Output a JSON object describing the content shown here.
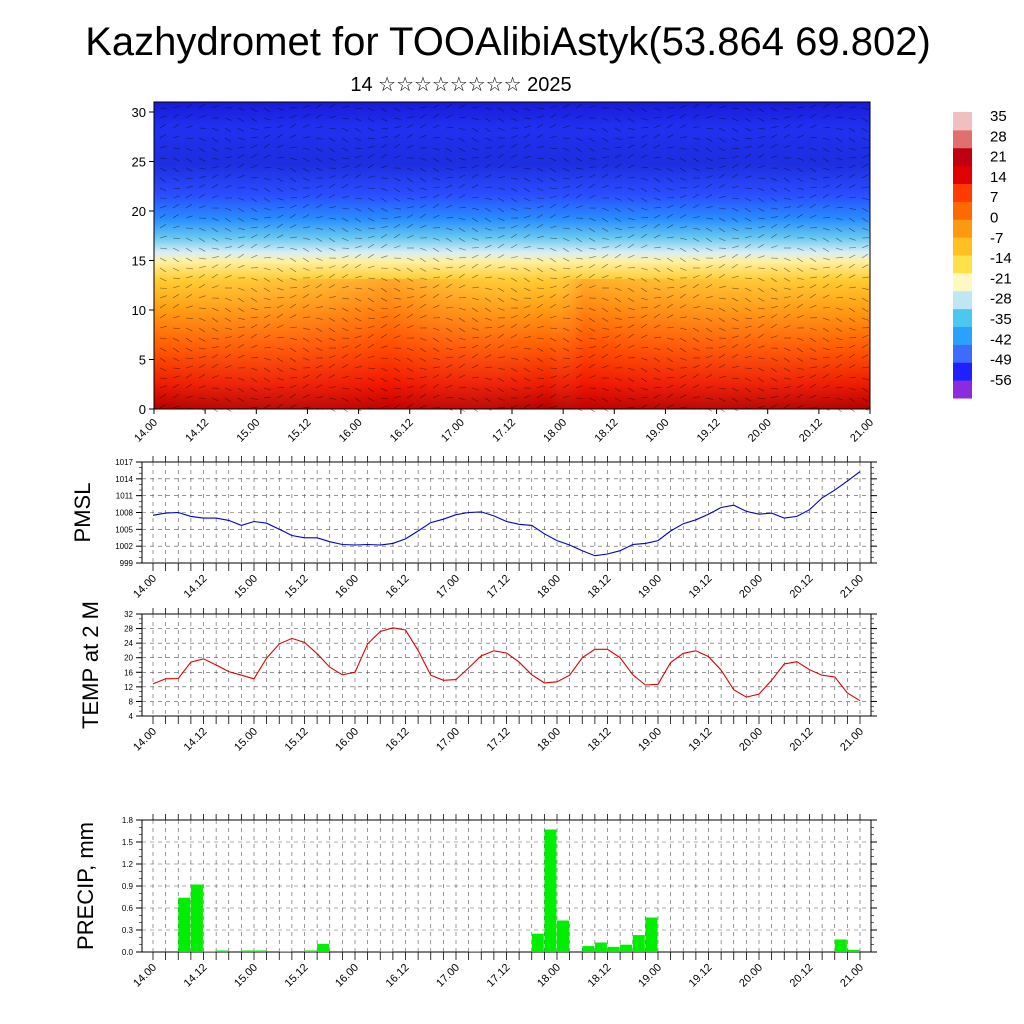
{
  "header": {
    "title": "Kazhydromet for TOOAlibiAstyk(53.864 69.802)",
    "subtitle": "14 ☆☆☆☆☆☆☆☆ 2025"
  },
  "colors": {
    "pmsl_line": "#0000cc",
    "temp_line": "#dd0000",
    "precip_bar": "#00ee00",
    "colorbar": [
      "#8a2be2",
      "#2020ff",
      "#3d6bff",
      "#2aa0ff",
      "#4cc8f0",
      "#bfe6f5",
      "#fff8c0",
      "#ffe24a",
      "#ffc020",
      "#ff9a10",
      "#ff6a00",
      "#ff3b00",
      "#e00000",
      "#c00010",
      "#e07070",
      "#f0c0c0"
    ]
  },
  "chart_data": [
    {
      "type": "heatmap",
      "x_tick_labels": [
        "14.00",
        "14.12",
        "15.00",
        "15.12",
        "16.00",
        "16.12",
        "17.00",
        "17.12",
        "18.00",
        "18.12",
        "19.00",
        "19.12",
        "20.00",
        "20.12",
        "21.00"
      ],
      "y_tick_labels": [
        "0",
        "5",
        "10",
        "15",
        "20",
        "25",
        "30"
      ],
      "ylim": [
        0,
        30
      ],
      "colorbar_labels": [
        "35",
        "28",
        "21",
        "14",
        "7",
        "0",
        "-7",
        "-14",
        "-21",
        "-28",
        "-35",
        "-42",
        "-49",
        "-56"
      ],
      "overlay": "wind barbs"
    },
    {
      "type": "line",
      "ylabel": "PMSL",
      "y_tick_labels": [
        "1017",
        "1014",
        "1011",
        "1008",
        "1005",
        "1002",
        "999"
      ],
      "ylim": [
        999,
        1017
      ],
      "x_tick_labels": [
        "14.00",
        "14.12",
        "15.00",
        "15.12",
        "16.00",
        "16.12",
        "17.00",
        "17.12",
        "18.00",
        "18.12",
        "19.00",
        "19.12",
        "20.00",
        "20.12",
        "21.00"
      ],
      "x_hours_step": 3,
      "values": [
        1007.5,
        1007.9,
        1008.0,
        1007.3,
        1007.0,
        1007.0,
        1006.6,
        1005.7,
        1006.4,
        1006.1,
        1005.0,
        1003.9,
        1003.5,
        1003.5,
        1002.8,
        1002.3,
        1002.2,
        1002.3,
        1002.2,
        1002.5,
        1003.3,
        1004.7,
        1006.2,
        1006.8,
        1007.6,
        1008.0,
        1008.1,
        1007.4,
        1006.4,
        1005.9,
        1005.7,
        1004.2,
        1003.0,
        1002.2,
        1001.2,
        1000.3,
        1000.6,
        1001.2,
        1002.3,
        1002.5,
        1003.0,
        1004.7,
        1006.0,
        1006.7,
        1007.7,
        1008.9,
        1009.3,
        1008.2,
        1007.7,
        1007.9,
        1007.0,
        1007.3,
        1008.5,
        1010.6,
        1012.0,
        1013.6,
        1015.3
      ]
    },
    {
      "type": "line",
      "ylabel": "TEMP at 2 M",
      "y_tick_labels": [
        "32",
        "28",
        "24",
        "20",
        "16",
        "12",
        "8",
        "4"
      ],
      "ylim": [
        4,
        32
      ],
      "x_tick_labels": [
        "14.00",
        "14.12",
        "15.00",
        "15.12",
        "16.00",
        "16.12",
        "17.00",
        "17.12",
        "18.00",
        "18.12",
        "19.00",
        "19.12",
        "20.00",
        "20.12",
        "21.00"
      ],
      "x_hours_step": 3,
      "values": [
        12.8,
        14.2,
        14.3,
        18.8,
        19.7,
        18.0,
        16.2,
        15.2,
        14.2,
        19.9,
        23.8,
        25.3,
        24.2,
        21.1,
        17.4,
        15.3,
        16.0,
        23.8,
        27.2,
        28.2,
        27.6,
        22.0,
        15.2,
        13.8,
        14.0,
        17.2,
        20.5,
        21.9,
        21.3,
        18.8,
        15.3,
        13.1,
        13.4,
        15.2,
        20.0,
        22.3,
        22.3,
        20.0,
        15.3,
        12.5,
        12.7,
        18.7,
        21.2,
        21.9,
        20.3,
        16.6,
        11.2,
        9.2,
        10.0,
        13.8,
        18.3,
        18.9,
        16.7,
        15.2,
        14.7,
        10.3,
        8.2
      ]
    },
    {
      "type": "bar",
      "ylabel": "PRECIP, mm",
      "y_tick_labels": [
        "1.8",
        "1.5",
        "1.2",
        "0.9",
        "0.6",
        "0.3",
        "0.0"
      ],
      "ylim": [
        0,
        1.8
      ],
      "x_tick_labels": [
        "14.00",
        "14.12",
        "15.00",
        "15.12",
        "16.00",
        "16.12",
        "17.00",
        "17.12",
        "18.00",
        "18.12",
        "19.00",
        "19.12",
        "20.00",
        "20.12",
        "21.00"
      ],
      "x_hours_step": 3,
      "values": [
        0,
        0,
        0.74,
        0.92,
        0.01,
        0.02,
        0,
        0.02,
        0.02,
        0,
        0.01,
        0,
        0.02,
        0.11,
        0,
        0,
        0,
        0,
        0.01,
        0,
        0,
        0,
        0,
        0,
        0,
        0.01,
        0,
        0,
        0,
        0,
        0.25,
        1.67,
        0.43,
        0,
        0.08,
        0.13,
        0.07,
        0.1,
        0.23,
        0.47,
        0,
        0,
        0,
        0,
        0,
        0,
        0,
        0,
        0,
        0,
        0,
        0,
        0,
        0,
        0.17,
        0.03
      ]
    }
  ]
}
